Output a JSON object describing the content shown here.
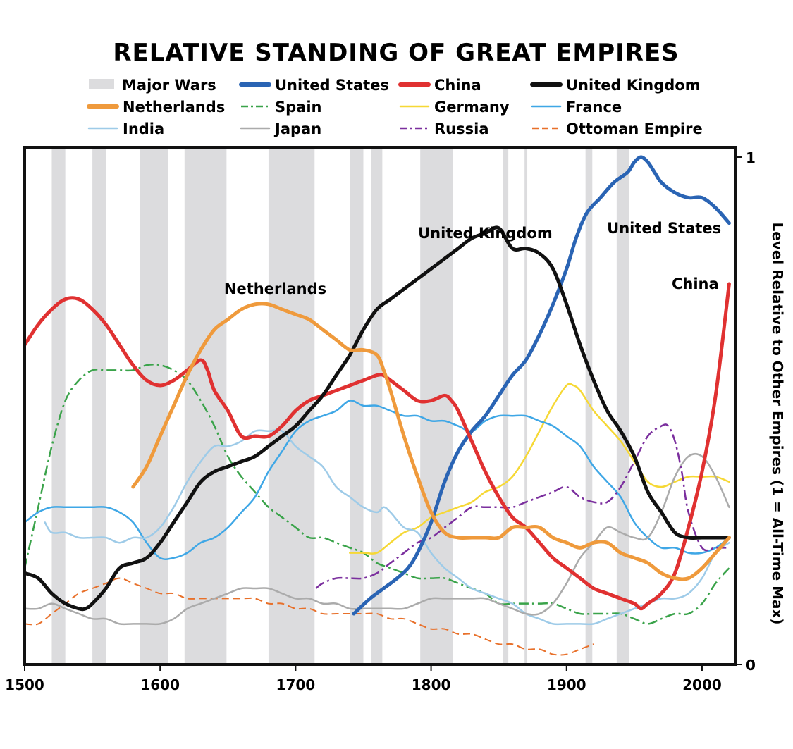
{
  "chart_data": {
    "type": "line",
    "title": "RELATIVE STANDING OF GREAT EMPIRES",
    "ylabel": "Level Relative to Other Empires (1 = All-Time Max)",
    "xlim": [
      1500,
      2025
    ],
    "ylim": [
      0,
      1
    ],
    "x_ticks": [
      "1500",
      "1600",
      "1700",
      "1800",
      "1900",
      "2000"
    ],
    "x_tick_values": [
      1500,
      1600,
      1700,
      1800,
      1900,
      2000
    ],
    "y_ticks": [
      "0",
      "1"
    ],
    "y_tick_values": [
      0,
      1
    ],
    "y_axis_side": "right",
    "grid": false,
    "legend_position": "top",
    "wars_label": "Major Wars",
    "wars_color": "#dcdcde",
    "major_wars": [
      [
        1520,
        1530
      ],
      [
        1550,
        1560
      ],
      [
        1585,
        1606
      ],
      [
        1618,
        1649
      ],
      [
        1680,
        1714
      ],
      [
        1740,
        1750
      ],
      [
        1756,
        1764
      ],
      [
        1792,
        1816
      ],
      [
        1853,
        1857
      ],
      [
        1869,
        1871
      ],
      [
        1914,
        1919
      ],
      [
        1937,
        1946
      ]
    ],
    "series": [
      {
        "name": "United States",
        "color": "#2a64b4",
        "width": 5,
        "dash": "solid",
        "x": [
          1743,
          1755,
          1765,
          1775,
          1783,
          1790,
          1800,
          1810,
          1820,
          1830,
          1840,
          1850,
          1860,
          1870,
          1880,
          1890,
          1900,
          1907,
          1915,
          1925,
          1935,
          1945,
          1950,
          1955,
          1960,
          1965,
          1970,
          1980,
          1990,
          2000,
          2010,
          2020
        ],
        "y": [
          0.1,
          0.13,
          0.15,
          0.17,
          0.19,
          0.22,
          0.28,
          0.36,
          0.42,
          0.46,
          0.49,
          0.53,
          0.57,
          0.6,
          0.65,
          0.71,
          0.78,
          0.84,
          0.89,
          0.92,
          0.95,
          0.97,
          0.99,
          1.0,
          0.99,
          0.97,
          0.95,
          0.93,
          0.92,
          0.92,
          0.9,
          0.87
        ]
      },
      {
        "name": "China",
        "color": "#e03131",
        "width": 5,
        "dash": "solid",
        "x": [
          1500,
          1510,
          1520,
          1530,
          1540,
          1550,
          1560,
          1570,
          1580,
          1590,
          1600,
          1610,
          1620,
          1630,
          1635,
          1640,
          1650,
          1660,
          1670,
          1680,
          1690,
          1700,
          1710,
          1720,
          1730,
          1740,
          1750,
          1760,
          1765,
          1770,
          1780,
          1790,
          1800,
          1810,
          1815,
          1820,
          1830,
          1840,
          1850,
          1860,
          1870,
          1880,
          1890,
          1900,
          1910,
          1920,
          1930,
          1940,
          1950,
          1955,
          1960,
          1970,
          1980,
          1990,
          2000,
          2010,
          2020
        ],
        "y": [
          0.63,
          0.67,
          0.7,
          0.72,
          0.72,
          0.7,
          0.67,
          0.63,
          0.59,
          0.56,
          0.55,
          0.56,
          0.58,
          0.6,
          0.58,
          0.54,
          0.5,
          0.45,
          0.45,
          0.45,
          0.47,
          0.5,
          0.52,
          0.53,
          0.54,
          0.55,
          0.56,
          0.57,
          0.57,
          0.56,
          0.54,
          0.52,
          0.52,
          0.53,
          0.52,
          0.5,
          0.44,
          0.38,
          0.33,
          0.29,
          0.27,
          0.24,
          0.21,
          0.19,
          0.17,
          0.15,
          0.14,
          0.13,
          0.12,
          0.11,
          0.12,
          0.14,
          0.18,
          0.27,
          0.38,
          0.53,
          0.75
        ]
      },
      {
        "name": "United Kingdom",
        "color": "#111111",
        "width": 5,
        "dash": "solid",
        "x": [
          1500,
          1510,
          1520,
          1530,
          1540,
          1545,
          1550,
          1560,
          1570,
          1580,
          1590,
          1600,
          1610,
          1620,
          1630,
          1640,
          1650,
          1660,
          1670,
          1680,
          1690,
          1700,
          1710,
          1720,
          1730,
          1740,
          1750,
          1760,
          1770,
          1780,
          1790,
          1800,
          1810,
          1820,
          1830,
          1840,
          1850,
          1860,
          1870,
          1880,
          1890,
          1900,
          1910,
          1920,
          1930,
          1940,
          1950,
          1960,
          1970,
          1980,
          1990,
          2000,
          2010,
          2020
        ],
        "y": [
          0.18,
          0.17,
          0.14,
          0.12,
          0.11,
          0.11,
          0.12,
          0.15,
          0.19,
          0.2,
          0.21,
          0.24,
          0.28,
          0.32,
          0.36,
          0.38,
          0.39,
          0.4,
          0.41,
          0.43,
          0.45,
          0.47,
          0.5,
          0.53,
          0.57,
          0.61,
          0.66,
          0.7,
          0.72,
          0.74,
          0.76,
          0.78,
          0.8,
          0.82,
          0.84,
          0.85,
          0.86,
          0.82,
          0.82,
          0.81,
          0.78,
          0.71,
          0.63,
          0.56,
          0.5,
          0.46,
          0.41,
          0.34,
          0.3,
          0.26,
          0.25,
          0.25,
          0.25,
          0.25
        ]
      },
      {
        "name": "Netherlands",
        "color": "#ef9a3c",
        "width": 5,
        "dash": "solid",
        "x": [
          1580,
          1590,
          1600,
          1610,
          1620,
          1630,
          1640,
          1650,
          1660,
          1670,
          1680,
          1690,
          1700,
          1710,
          1720,
          1730,
          1740,
          1750,
          1760,
          1765,
          1770,
          1780,
          1790,
          1800,
          1810,
          1820,
          1830,
          1840,
          1850,
          1860,
          1870,
          1880,
          1890,
          1900,
          1910,
          1920,
          1930,
          1940,
          1950,
          1960,
          1970,
          1980,
          1990,
          2000,
          2010,
          2020
        ],
        "y": [
          0.35,
          0.39,
          0.45,
          0.51,
          0.57,
          0.62,
          0.66,
          0.68,
          0.7,
          0.71,
          0.71,
          0.7,
          0.69,
          0.68,
          0.66,
          0.64,
          0.62,
          0.62,
          0.61,
          0.58,
          0.54,
          0.45,
          0.37,
          0.3,
          0.26,
          0.25,
          0.25,
          0.25,
          0.25,
          0.27,
          0.27,
          0.27,
          0.25,
          0.24,
          0.23,
          0.24,
          0.24,
          0.22,
          0.21,
          0.2,
          0.18,
          0.17,
          0.17,
          0.19,
          0.22,
          0.25
        ]
      },
      {
        "name": "Spain",
        "color": "#3aa34a",
        "width": 2.5,
        "dash": "dashdot",
        "x": [
          1500,
          1510,
          1520,
          1530,
          1540,
          1550,
          1560,
          1570,
          1580,
          1590,
          1600,
          1610,
          1620,
          1630,
          1640,
          1650,
          1660,
          1670,
          1680,
          1690,
          1700,
          1710,
          1720,
          1730,
          1740,
          1750,
          1760,
          1770,
          1780,
          1790,
          1800,
          1810,
          1820,
          1830,
          1840,
          1850,
          1860,
          1870,
          1880,
          1890,
          1900,
          1910,
          1920,
          1930,
          1940,
          1950,
          1960,
          1970,
          1980,
          1990,
          2000,
          2010,
          2020
        ],
        "y": [
          0.19,
          0.31,
          0.43,
          0.52,
          0.56,
          0.58,
          0.58,
          0.58,
          0.58,
          0.59,
          0.59,
          0.58,
          0.56,
          0.52,
          0.47,
          0.41,
          0.37,
          0.34,
          0.31,
          0.29,
          0.27,
          0.25,
          0.25,
          0.24,
          0.23,
          0.22,
          0.2,
          0.19,
          0.18,
          0.17,
          0.17,
          0.17,
          0.16,
          0.15,
          0.14,
          0.12,
          0.12,
          0.12,
          0.12,
          0.12,
          0.11,
          0.1,
          0.1,
          0.1,
          0.1,
          0.09,
          0.08,
          0.09,
          0.1,
          0.1,
          0.12,
          0.16,
          0.19
        ]
      },
      {
        "name": "Germany",
        "color": "#f6d835",
        "width": 2.5,
        "dash": "solid",
        "x": [
          1740,
          1750,
          1760,
          1770,
          1780,
          1790,
          1800,
          1810,
          1820,
          1830,
          1840,
          1850,
          1860,
          1870,
          1880,
          1890,
          1900,
          1905,
          1910,
          1920,
          1930,
          1940,
          1950,
          1960,
          1970,
          1980,
          1990,
          2000,
          2010,
          2020
        ],
        "y": [
          0.22,
          0.22,
          0.22,
          0.24,
          0.26,
          0.27,
          0.29,
          0.3,
          0.31,
          0.32,
          0.34,
          0.35,
          0.37,
          0.41,
          0.46,
          0.51,
          0.55,
          0.55,
          0.54,
          0.5,
          0.47,
          0.44,
          0.4,
          0.36,
          0.35,
          0.36,
          0.37,
          0.37,
          0.37,
          0.36
        ]
      },
      {
        "name": "France",
        "color": "#3fa7e6",
        "width": 2.5,
        "dash": "solid",
        "x": [
          1500,
          1510,
          1520,
          1530,
          1540,
          1550,
          1560,
          1570,
          1580,
          1590,
          1600,
          1610,
          1620,
          1630,
          1640,
          1650,
          1660,
          1670,
          1680,
          1690,
          1700,
          1710,
          1720,
          1730,
          1740,
          1750,
          1760,
          1770,
          1780,
          1790,
          1800,
          1810,
          1820,
          1830,
          1840,
          1850,
          1860,
          1870,
          1880,
          1890,
          1900,
          1910,
          1920,
          1930,
          1940,
          1950,
          1960,
          1970,
          1980,
          1990,
          2000,
          2010,
          2020
        ],
        "y": [
          0.28,
          0.3,
          0.31,
          0.31,
          0.31,
          0.31,
          0.31,
          0.3,
          0.28,
          0.24,
          0.21,
          0.21,
          0.22,
          0.24,
          0.25,
          0.27,
          0.3,
          0.33,
          0.38,
          0.42,
          0.46,
          0.48,
          0.49,
          0.5,
          0.52,
          0.51,
          0.51,
          0.5,
          0.49,
          0.49,
          0.48,
          0.48,
          0.47,
          0.46,
          0.48,
          0.49,
          0.49,
          0.49,
          0.48,
          0.47,
          0.45,
          0.43,
          0.39,
          0.36,
          0.33,
          0.28,
          0.25,
          0.23,
          0.23,
          0.22,
          0.22,
          0.23,
          0.25
        ]
      },
      {
        "name": "India",
        "color": "#9ecbe8",
        "width": 2.5,
        "dash": "solid",
        "x": [
          1515,
          1520,
          1530,
          1540,
          1550,
          1560,
          1570,
          1580,
          1590,
          1600,
          1610,
          1620,
          1630,
          1640,
          1650,
          1660,
          1670,
          1680,
          1690,
          1700,
          1710,
          1720,
          1730,
          1740,
          1750,
          1760,
          1765,
          1770,
          1780,
          1790,
          1800,
          1810,
          1820,
          1830,
          1840,
          1850,
          1860,
          1870,
          1880,
          1890,
          1900,
          1910,
          1920,
          1930,
          1940,
          1950,
          1960,
          1970,
          1980,
          1990,
          2000,
          2010,
          2020
        ],
        "y": [
          0.28,
          0.26,
          0.26,
          0.25,
          0.25,
          0.25,
          0.24,
          0.25,
          0.25,
          0.27,
          0.31,
          0.36,
          0.4,
          0.43,
          0.43,
          0.44,
          0.46,
          0.46,
          0.46,
          0.43,
          0.41,
          0.39,
          0.35,
          0.33,
          0.31,
          0.3,
          0.31,
          0.3,
          0.27,
          0.26,
          0.22,
          0.19,
          0.17,
          0.15,
          0.14,
          0.13,
          0.12,
          0.1,
          0.09,
          0.08,
          0.08,
          0.08,
          0.08,
          0.09,
          0.1,
          0.11,
          0.12,
          0.13,
          0.13,
          0.14,
          0.17,
          0.22,
          0.24
        ]
      },
      {
        "name": "Japan",
        "color": "#ababab",
        "width": 2.5,
        "dash": "solid",
        "x": [
          1500,
          1510,
          1520,
          1530,
          1540,
          1550,
          1560,
          1570,
          1580,
          1590,
          1600,
          1610,
          1620,
          1630,
          1640,
          1650,
          1660,
          1670,
          1680,
          1690,
          1700,
          1710,
          1720,
          1730,
          1740,
          1750,
          1760,
          1770,
          1780,
          1790,
          1800,
          1810,
          1820,
          1830,
          1840,
          1850,
          1860,
          1870,
          1880,
          1890,
          1900,
          1910,
          1920,
          1930,
          1940,
          1950,
          1960,
          1970,
          1980,
          1990,
          2000,
          2010,
          2020
        ],
        "y": [
          0.11,
          0.11,
          0.12,
          0.11,
          0.1,
          0.09,
          0.09,
          0.08,
          0.08,
          0.08,
          0.08,
          0.09,
          0.11,
          0.12,
          0.13,
          0.14,
          0.15,
          0.15,
          0.15,
          0.14,
          0.13,
          0.13,
          0.12,
          0.12,
          0.11,
          0.11,
          0.11,
          0.11,
          0.11,
          0.12,
          0.13,
          0.13,
          0.13,
          0.13,
          0.13,
          0.12,
          0.11,
          0.1,
          0.1,
          0.12,
          0.16,
          0.21,
          0.24,
          0.27,
          0.26,
          0.25,
          0.25,
          0.3,
          0.37,
          0.41,
          0.41,
          0.37,
          0.31
        ]
      },
      {
        "name": "Russia",
        "color": "#7b2f9e",
        "width": 2.5,
        "dash": "dashdot",
        "x": [
          1715,
          1720,
          1730,
          1740,
          1750,
          1760,
          1770,
          1780,
          1790,
          1800,
          1810,
          1820,
          1830,
          1840,
          1850,
          1860,
          1870,
          1880,
          1890,
          1900,
          1910,
          1920,
          1930,
          1940,
          1950,
          1960,
          1970,
          1975,
          1980,
          1985,
          1990,
          2000,
          2010,
          2020
        ],
        "y": [
          0.15,
          0.16,
          0.17,
          0.17,
          0.17,
          0.18,
          0.2,
          0.22,
          0.24,
          0.25,
          0.27,
          0.29,
          0.31,
          0.31,
          0.31,
          0.31,
          0.32,
          0.33,
          0.34,
          0.35,
          0.33,
          0.32,
          0.32,
          0.35,
          0.4,
          0.45,
          0.47,
          0.47,
          0.44,
          0.38,
          0.3,
          0.23,
          0.23,
          0.23
        ]
      },
      {
        "name": "Ottoman Empire",
        "color": "#e8702a",
        "width": 2,
        "dash": "dashed",
        "x": [
          1500,
          1510,
          1520,
          1530,
          1540,
          1550,
          1560,
          1570,
          1580,
          1590,
          1600,
          1610,
          1620,
          1630,
          1640,
          1650,
          1660,
          1670,
          1680,
          1690,
          1700,
          1710,
          1720,
          1730,
          1740,
          1750,
          1760,
          1770,
          1780,
          1790,
          1800,
          1810,
          1820,
          1830,
          1840,
          1850,
          1860,
          1870,
          1880,
          1890,
          1900,
          1910,
          1920
        ],
        "y": [
          0.08,
          0.08,
          0.1,
          0.12,
          0.14,
          0.15,
          0.16,
          0.17,
          0.16,
          0.15,
          0.14,
          0.14,
          0.13,
          0.13,
          0.13,
          0.13,
          0.13,
          0.13,
          0.12,
          0.12,
          0.11,
          0.11,
          0.1,
          0.1,
          0.1,
          0.1,
          0.1,
          0.09,
          0.09,
          0.08,
          0.07,
          0.07,
          0.06,
          0.06,
          0.05,
          0.04,
          0.04,
          0.03,
          0.03,
          0.02,
          0.02,
          0.03,
          0.04
        ]
      }
    ],
    "legend_order": [
      "Major Wars",
      "United States",
      "China",
      "United Kingdom",
      "Netherlands",
      "Spain",
      "Germany",
      "France",
      "India",
      "Japan",
      "Russia",
      "Ottoman Empire"
    ],
    "annotations": [
      {
        "text": "United Kingdom",
        "x": 1840,
        "y": 0.85
      },
      {
        "text": "Netherlands",
        "x": 1685,
        "y": 0.74
      },
      {
        "text": "United States",
        "x": 1972,
        "y": 0.86
      },
      {
        "text": "China",
        "x": 1995,
        "y": 0.75
      }
    ]
  }
}
